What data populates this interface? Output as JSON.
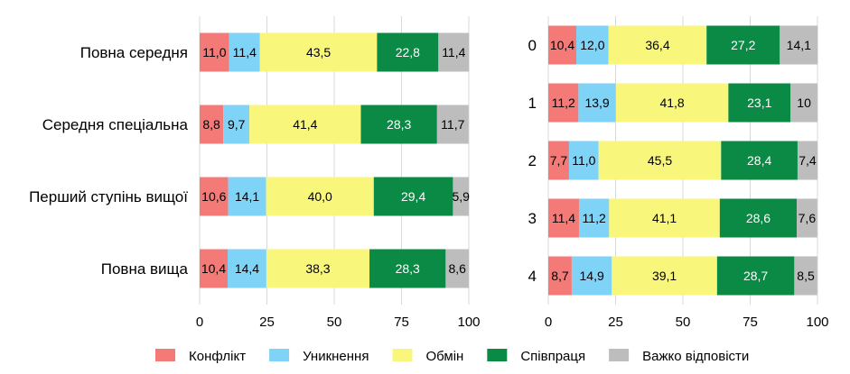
{
  "colors": {
    "conflict": "#f47a78",
    "avoidance": "#7fd3f7",
    "exchange": "#f9f77b",
    "cooperation": "#0a8a44",
    "hard": "#bdbdbd"
  },
  "legend": [
    {
      "key": "conflict",
      "label": "Конфлікт",
      "color": "#f47a78"
    },
    {
      "key": "avoidance",
      "label": "Уникнення",
      "color": "#7fd3f7"
    },
    {
      "key": "exchange",
      "label": "Обмін",
      "color": "#f9f77b"
    },
    {
      "key": "cooperation",
      "label": "Співпраця",
      "color": "#0a8a44"
    },
    {
      "key": "hard",
      "label": "Важко відповісти",
      "color": "#bdbdbd"
    }
  ],
  "chart_data": [
    {
      "type": "bar",
      "orientation": "horizontal",
      "stacked": true,
      "title": "",
      "xlim": [
        0,
        100
      ],
      "xticks": [
        0,
        25,
        50,
        75,
        100
      ],
      "grid": true,
      "legend_position": "bottom",
      "categories": [
        "Повна середня",
        "Середня спеціальна",
        "Перший ступінь вищої",
        "Повна вища"
      ],
      "series": [
        {
          "name": "Конфлікт",
          "values": [
            11.0,
            8.8,
            10.6,
            10.4
          ],
          "labels": [
            "11,0",
            "8,8",
            "10,6",
            "10,4"
          ]
        },
        {
          "name": "Уникнення",
          "values": [
            11.4,
            9.7,
            14.1,
            14.4
          ],
          "labels": [
            "11,4",
            "9,7",
            "14,1",
            "14,4"
          ]
        },
        {
          "name": "Обмін",
          "values": [
            43.5,
            41.4,
            40.0,
            38.3
          ],
          "labels": [
            "43,5",
            "41,4",
            "40,0",
            "38,3"
          ]
        },
        {
          "name": "Співпраця",
          "values": [
            22.8,
            28.3,
            29.4,
            28.3
          ],
          "labels": [
            "22,8",
            "28,3",
            "29,4",
            "28,3"
          ]
        },
        {
          "name": "Важко відповісти",
          "values": [
            11.4,
            11.7,
            5.9,
            8.6
          ],
          "labels": [
            "11,4",
            "11,7",
            "5,9",
            "8,6"
          ]
        }
      ]
    },
    {
      "type": "bar",
      "orientation": "horizontal",
      "stacked": true,
      "title": "",
      "xlim": [
        0,
        100
      ],
      "xticks": [
        0,
        25,
        50,
        75,
        100
      ],
      "grid": true,
      "legend_position": "bottom",
      "categories": [
        "0",
        "1",
        "2",
        "3",
        "4"
      ],
      "series": [
        {
          "name": "Конфлікт",
          "values": [
            10.4,
            11.2,
            7.7,
            11.4,
            8.7
          ],
          "labels": [
            "10,4",
            "11,2",
            "7,7",
            "11,4",
            "8,7"
          ]
        },
        {
          "name": "Уникнення",
          "values": [
            12.0,
            13.9,
            11.0,
            11.2,
            14.9
          ],
          "labels": [
            "12,0",
            "13,9",
            "11,0",
            "11,2",
            "14,9"
          ]
        },
        {
          "name": "Обмін",
          "values": [
            36.4,
            41.8,
            45.5,
            41.1,
            39.1
          ],
          "labels": [
            "36,4",
            "41,8",
            "45,5",
            "41,1",
            "39,1"
          ]
        },
        {
          "name": "Співпраця",
          "values": [
            27.2,
            23.1,
            28.4,
            28.6,
            28.7
          ],
          "labels": [
            "27,2",
            "23,1",
            "28,4",
            "28,6",
            "28,7"
          ]
        },
        {
          "name": "Важко відповісти",
          "values": [
            14.1,
            10,
            7.4,
            7.6,
            8.5
          ],
          "labels": [
            "14,1",
            "10",
            "7,4",
            "7,6",
            "8,5"
          ]
        }
      ]
    }
  ]
}
